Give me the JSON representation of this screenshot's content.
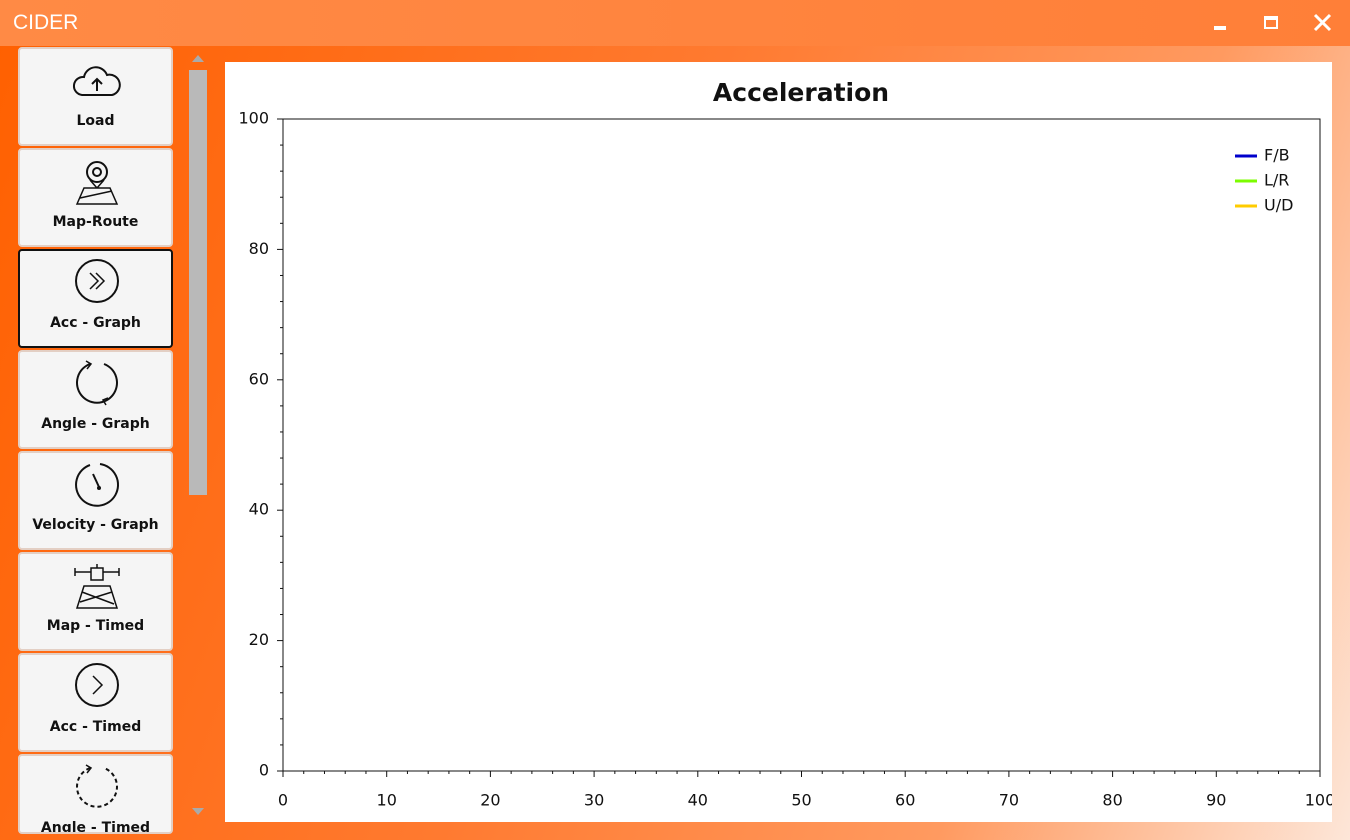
{
  "window": {
    "title": "CIDER"
  },
  "sidebar": {
    "buttons": [
      "Load",
      "Map-Route",
      "Acc - Graph",
      "Angle - Graph",
      "Velocity - Graph",
      "Map - Timed",
      "Acc - Timed",
      "Angle - Timed"
    ]
  },
  "chart_data": {
    "type": "line",
    "title": "Acceleration",
    "x": [],
    "series": [
      {
        "name": "F/B",
        "color": "#0000cc",
        "values": []
      },
      {
        "name": "L/R",
        "color": "#7cfc00",
        "values": []
      },
      {
        "name": "U/D",
        "color": "#ffcc00",
        "values": []
      }
    ],
    "xlim": [
      0,
      100
    ],
    "xticks": [
      0,
      10,
      20,
      30,
      40,
      50,
      60,
      70,
      80,
      90,
      100
    ],
    "ylim": [
      0,
      100
    ],
    "yticks": [
      0,
      20,
      40,
      60,
      80,
      100
    ],
    "minor_divisions": {
      "x": 5,
      "y": 5
    },
    "grid": false,
    "legend": "top-right"
  }
}
